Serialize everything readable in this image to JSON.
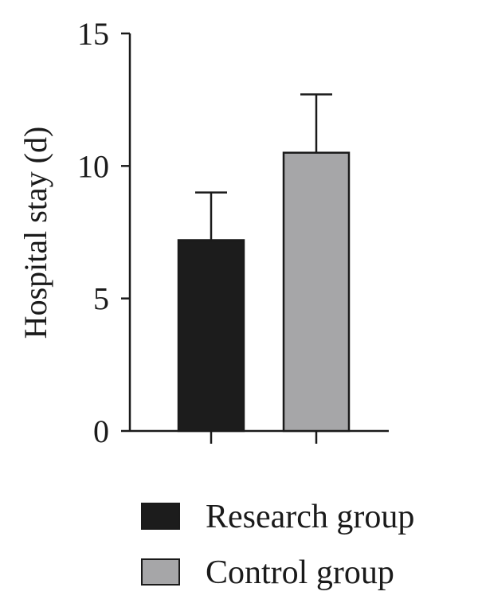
{
  "chart_data": {
    "type": "bar",
    "title": "",
    "xlabel": "",
    "ylabel": "Hospital stay (d)",
    "ylim": [
      0,
      15
    ],
    "yticks": [
      0,
      5,
      10,
      15
    ],
    "grid": false,
    "legend_position": "bottom",
    "series": [
      {
        "name": "Research group",
        "value": 7.2,
        "error": 1.8,
        "color": "#1c1c1c"
      },
      {
        "name": "Control group",
        "value": 10.5,
        "error": 2.2,
        "color": "#a6a6a8"
      }
    ]
  }
}
